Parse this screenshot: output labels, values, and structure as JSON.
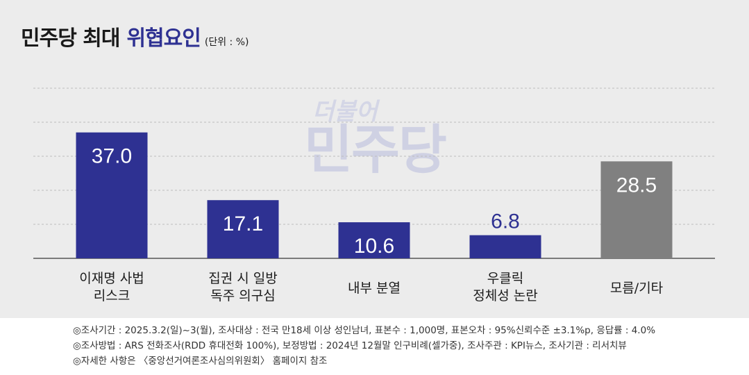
{
  "title": {
    "main": "민주당 최대",
    "accent": "위협요인",
    "unit": "(단위 : %)"
  },
  "watermark": {
    "top": "더불어",
    "main": "민주당"
  },
  "chart_data": {
    "type": "bar",
    "categories": [
      [
        "이재명 사법",
        "리스크"
      ],
      [
        "집권 시 일방",
        "독주 의구심"
      ],
      [
        "내부 분열"
      ],
      [
        "우클릭",
        "정체성 논란"
      ],
      [
        "모름/기타"
      ]
    ],
    "values": [
      37.0,
      17.1,
      10.6,
      6.8,
      28.5
    ],
    "value_labels": [
      "37.0",
      "17.1",
      "10.6",
      "6.8",
      "28.5"
    ],
    "colors": [
      "#2e3192",
      "#2e3192",
      "#2e3192",
      "#2e3192",
      "#808080"
    ],
    "ylim": [
      0,
      50
    ],
    "grid": true
  },
  "footnotes": [
    "◎조사기간 : 2025.3.2(일)~3(월), 조사대상 : 전국 만18세 이상 성인남녀, 표본수 : 1,000명, 표본오차 : 95%신뢰수준 ±3.1%p, 응답률 : 4.0%",
    "◎조사방법 : ARS 전화조사(RDD 휴대전화 100%), 보정방법 : 2024년 12월말 인구비례(셀가중), 조사주관 : KPI뉴스, 조사기관 : 리서치뷰",
    "◎자세한 사항은 〈중앙선거여론조사심의위원회〉 홈페이지 참조"
  ]
}
